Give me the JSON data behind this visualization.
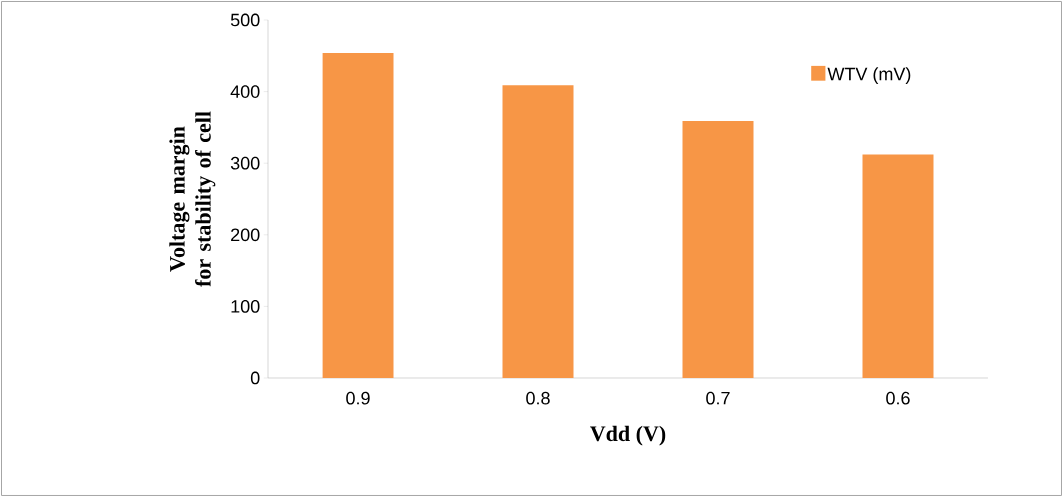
{
  "chart_data": {
    "type": "bar",
    "xlabel": "Vdd (V)",
    "ylabel": "Voltage margin for stability of cell",
    "categories": [
      "0.9",
      "0.8",
      "0.7",
      "0.6"
    ],
    "series": [
      {
        "name": "WTV (mV)",
        "color": "#f79646",
        "values": [
          454,
          409,
          359,
          312
        ]
      }
    ],
    "ylim": [
      0,
      500
    ],
    "yticks": [
      0,
      100,
      200,
      300,
      400,
      500
    ],
    "legend": "top right"
  }
}
